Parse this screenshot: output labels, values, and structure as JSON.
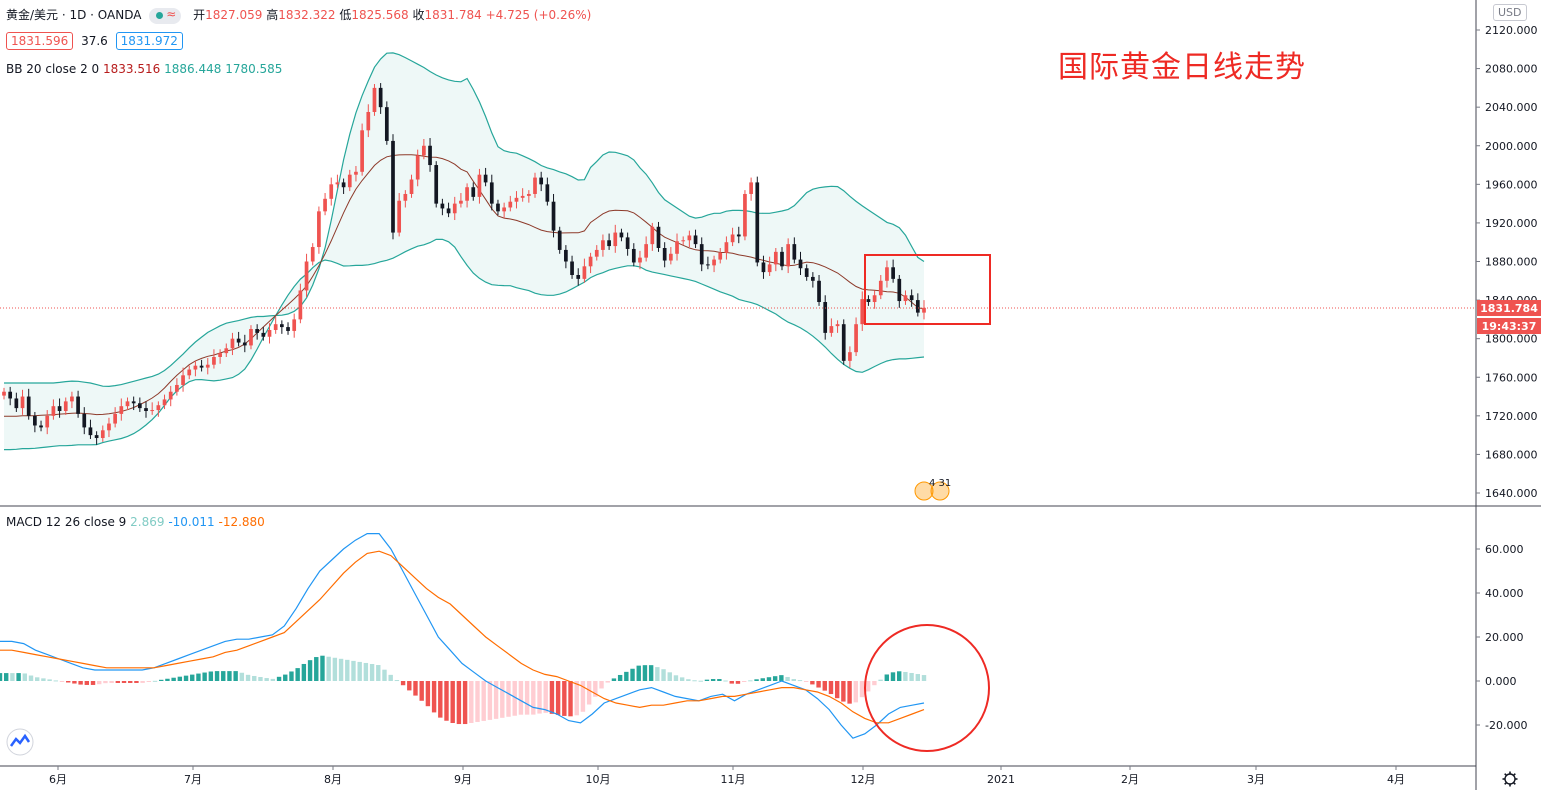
{
  "header": {
    "symbol": "黄金/美元 · 1D · OANDA",
    "open_label": "开",
    "open": "1827.059",
    "high_label": "高",
    "high": "1832.322",
    "low_label": "低",
    "low": "1825.568",
    "close_label": "收",
    "close": "1831.784",
    "change": "+4.725 (+0.26%)",
    "bid": "1831.596",
    "spread": "37.6",
    "ask": "1831.972"
  },
  "bb_legend": {
    "label": "BB 20 close 2 0",
    "basis": "1833.516",
    "upper": "1886.448",
    "lower": "1780.585"
  },
  "macd_legend": {
    "label": "MACD 12 26 close 9",
    "hist": "2.869",
    "macd": "-10.011",
    "signal": "-12.880"
  },
  "annotation_title": "国际黄金日线走势",
  "currency_badge": "USD",
  "price_label": "1831.784",
  "countdown_label": "19:43:37",
  "event_marker": "4 31",
  "colors": {
    "up": "#ef5350",
    "down": "#131722",
    "bb_band": "#26a69a",
    "bb_basis": "#8d3a2a",
    "macd_line": "#2196f3",
    "signal_line": "#ff6d00",
    "annotation": "#ee2a24"
  },
  "chart_data": [
    {
      "type": "candlestick",
      "y_ticks": [
        "2120.000",
        "2080.000",
        "2040.000",
        "2000.000",
        "1960.000",
        "1920.000",
        "1880.000",
        "1840.000",
        "1800.000",
        "1760.000",
        "1720.000",
        "1680.000",
        "1640.000"
      ],
      "x_ticks": [
        "6月",
        "7月",
        "8月",
        "9月",
        "10月",
        "11月",
        "12月",
        "2021",
        "2月",
        "3月",
        "4月"
      ],
      "ylim": [
        1628,
        2138
      ],
      "last_price": 1831.784,
      "close_series": [
        1745,
        1738,
        1728,
        1740,
        1720,
        1710,
        1708,
        1720,
        1730,
        1725,
        1735,
        1740,
        1722,
        1708,
        1700,
        1697,
        1705,
        1712,
        1722,
        1730,
        1735,
        1733,
        1728,
        1725,
        1726,
        1731,
        1737,
        1745,
        1752,
        1762,
        1768,
        1772,
        1770,
        1773,
        1781,
        1785,
        1790,
        1800,
        1796,
        1793,
        1810,
        1806,
        1802,
        1809,
        1815,
        1812,
        1808,
        1820,
        1850,
        1880,
        1895,
        1932,
        1945,
        1960,
        1962,
        1957,
        1970,
        1973,
        2016,
        2035,
        2060,
        2040,
        2005,
        1910,
        1943,
        1950,
        1965,
        1990,
        2000,
        1980,
        1940,
        1935,
        1930,
        1940,
        1943,
        1957,
        1947,
        1970,
        1962,
        1940,
        1932,
        1936,
        1942,
        1946,
        1948,
        1950,
        1967,
        1960,
        1942,
        1912,
        1892,
        1880,
        1866,
        1862,
        1875,
        1885,
        1892,
        1902,
        1896,
        1910,
        1905,
        1893,
        1879,
        1884,
        1898,
        1916,
        1894,
        1881,
        1888,
        1901,
        1902,
        1907,
        1898,
        1877,
        1876,
        1882,
        1889,
        1900,
        1908,
        1906,
        1950,
        1962,
        1879,
        1869,
        1877,
        1890,
        1875,
        1898,
        1882,
        1873,
        1864,
        1860,
        1838,
        1806,
        1813,
        1815,
        1777,
        1786,
        1815,
        1841,
        1838,
        1845,
        1860,
        1874,
        1862,
        1839,
        1845,
        1840,
        1827,
        1832
      ],
      "bb_upper": [
        1754,
        1754,
        1754,
        1754,
        1754,
        1754,
        1754,
        1754,
        1755,
        1756,
        1756,
        1755,
        1754,
        1752,
        1750,
        1751,
        1752,
        1754,
        1756,
        1758,
        1760,
        1762,
        1766,
        1772,
        1779,
        1786,
        1794,
        1800,
        1806,
        1810,
        1814,
        1817,
        1818,
        1820,
        1822,
        1823,
        1823,
        1824,
        1824,
        1825,
        1828,
        1834,
        1845,
        1862,
        1884,
        1916,
        1953,
        1990,
        2020,
        2044,
        2062,
        2080,
        2090,
        2097,
        2096,
        2093,
        2089,
        2085,
        2081,
        2076,
        2072,
        2069,
        2067,
        2066,
        2070,
        2055,
        2040,
        2020,
        2000,
        1995,
        1993,
        1992,
        1988,
        1985,
        1980,
        1977,
        1975,
        1972,
        1970,
        1965,
        1963,
        1978,
        1985,
        1993,
        1994,
        1992,
        1990,
        1985,
        1975,
        1968,
        1955,
        1945,
        1940,
        1935,
        1930,
        1925,
        1925,
        1928,
        1930,
        1930,
        1933,
        1933,
        1933,
        1932,
        1930,
        1930,
        1930,
        1932,
        1933,
        1937,
        1945,
        1953,
        1956,
        1957,
        1958,
        1958,
        1953,
        1946,
        1940,
        1935,
        1930,
        1925,
        1920,
        1918,
        1913,
        1900,
        1885,
        1880
      ],
      "bb_lower": [
        1685,
        1685,
        1686,
        1686,
        1687,
        1688,
        1689,
        1689,
        1690,
        1690,
        1690,
        1693,
        1695,
        1697,
        1701,
        1707,
        1715,
        1725,
        1738,
        1748,
        1755,
        1758,
        1757,
        1756,
        1758,
        1760,
        1766,
        1780,
        1798,
        1815,
        1832,
        1847,
        1860,
        1868,
        1878,
        1882,
        1879,
        1875,
        1876,
        1876,
        1877,
        1880,
        1882,
        1887,
        1892,
        1896,
        1898,
        1903,
        1903,
        1895,
        1880,
        1868,
        1860,
        1856,
        1855,
        1855,
        1852,
        1850,
        1846,
        1845,
        1845,
        1848,
        1853,
        1858,
        1865,
        1868,
        1872,
        1874,
        1876,
        1875,
        1870,
        1868,
        1866,
        1864,
        1862,
        1860,
        1856,
        1852,
        1848,
        1845,
        1840,
        1838,
        1835,
        1830,
        1825,
        1818,
        1814,
        1809,
        1802,
        1794,
        1784,
        1775,
        1769,
        1764,
        1768,
        1773,
        1777,
        1779,
        1779,
        1780,
        1781
      ]
    },
    {
      "type": "macd",
      "y_ticks": [
        "60.000",
        "40.000",
        "20.000",
        "0.000",
        "-20.000"
      ],
      "ylim": [
        -38,
        72
      ],
      "macd_line": [
        18,
        18,
        17,
        14,
        12,
        10,
        8,
        6,
        5,
        5,
        5,
        5,
        5,
        6,
        8,
        10,
        12,
        14,
        16,
        18,
        19,
        19,
        20,
        21,
        25,
        33,
        42,
        50,
        55,
        60,
        64,
        67,
        67,
        60,
        50,
        40,
        30,
        20,
        14,
        8,
        4,
        0,
        -3,
        -6,
        -9,
        -12,
        -13,
        -15,
        -18,
        -19,
        -15,
        -10,
        -8,
        -6,
        -4,
        -3,
        -5,
        -7,
        -8,
        -9,
        -7,
        -6,
        -9,
        -6,
        -4,
        -2,
        0,
        -2,
        -4,
        -8,
        -13,
        -20,
        -26,
        -24,
        -20,
        -15,
        -12,
        -11,
        -10
      ],
      "signal_line": [
        14,
        14,
        13,
        12,
        11,
        10,
        9,
        8,
        7,
        6,
        6,
        6,
        6,
        6,
        7,
        8,
        9,
        10,
        11,
        13,
        14,
        16,
        18,
        20,
        22,
        27,
        32,
        37,
        43,
        49,
        54,
        58,
        59,
        57,
        52,
        47,
        42,
        38,
        35,
        30,
        25,
        20,
        16,
        12,
        8,
        5,
        3,
        2,
        0,
        -2,
        -5,
        -8,
        -10,
        -11,
        -12,
        -11,
        -11,
        -10,
        -9,
        -9,
        -8,
        -7,
        -7,
        -6,
        -5,
        -4,
        -3,
        -3,
        -4,
        -5,
        -7,
        -10,
        -14,
        -17,
        -19,
        -19,
        -17,
        -15,
        -13
      ]
    }
  ]
}
